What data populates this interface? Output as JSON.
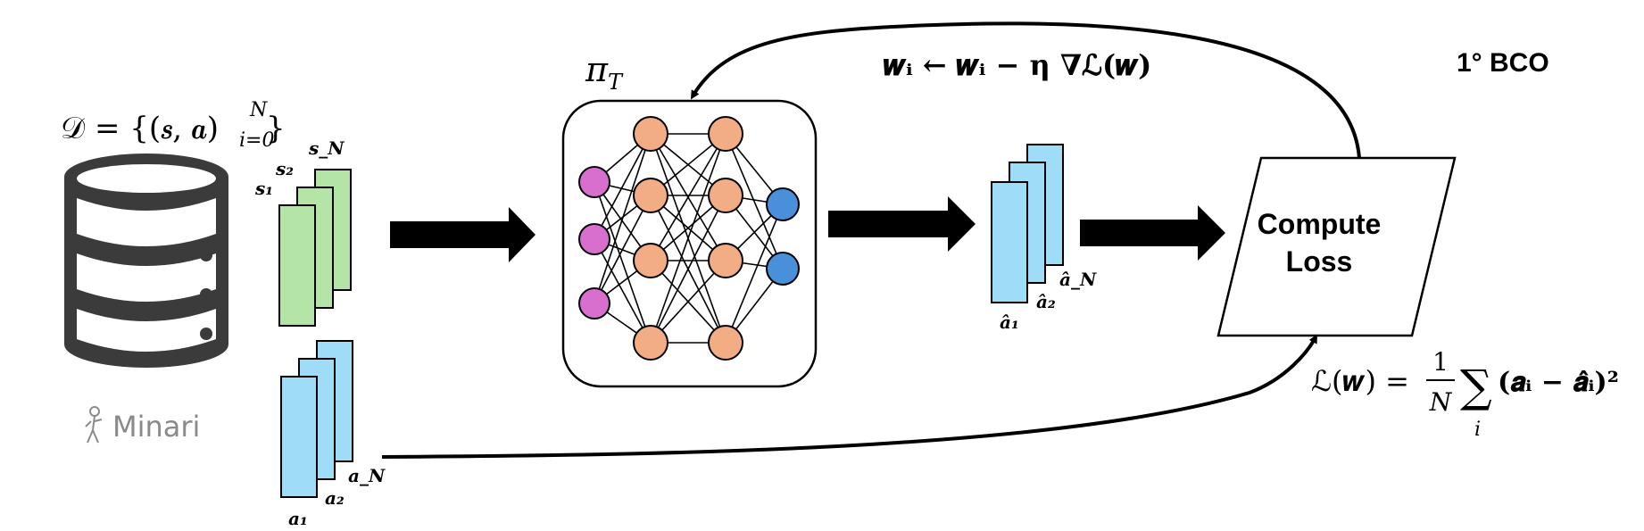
{
  "title": "1° BCO",
  "dataset": {
    "formula": "𝒟 = {(𝒔, 𝒂)",
    "formula_sup": "N",
    "formula_sub": "i=0",
    "formula_close": "}",
    "logo_text": "Minari",
    "state_labels": [
      "s₁",
      "s₂",
      "s_N"
    ],
    "action_labels": [
      "a₁",
      "a₂",
      "a_N"
    ]
  },
  "policy": {
    "label": "π",
    "label_sub": "T",
    "network_layers": [
      3,
      4,
      4,
      2
    ]
  },
  "predicted_actions": {
    "labels": [
      "â₁",
      "â₂",
      "â_N"
    ]
  },
  "loss_box": {
    "line1": "Compute",
    "line2": "Loss"
  },
  "update_rule": "𝒘ᵢ ← 𝒘ᵢ − η ∇ℒ(𝒘)",
  "loss_formula": {
    "lhs": "ℒ(𝒘) =",
    "frac_num": "1",
    "frac_den": "N",
    "sum": "∑",
    "sum_sub": "i",
    "rhs": "(𝒂ᵢ − 𝒂̂ᵢ)²"
  },
  "colors": {
    "state_green": "#b5e5a6",
    "action_blue": "#9fdcf7",
    "input_node": "#d86fcf",
    "hidden_node": "#f2ad85",
    "output_node": "#4a8fd9",
    "db_gray": "#3b3b3b",
    "minari_gray": "#8a8a8a"
  }
}
